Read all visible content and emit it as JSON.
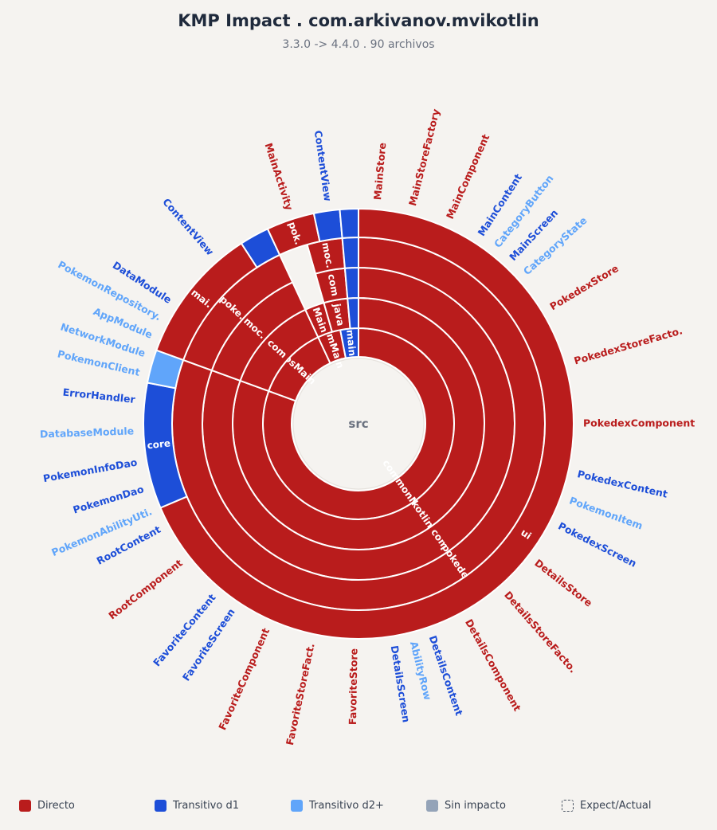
{
  "header": {
    "title": "KMP Impact . com.arkivanov.mvikotlin",
    "subtitle": "3.3.0 -> 4.4.0 . 90 archivos"
  },
  "colors": {
    "direct": "#b91c1c",
    "d1": "#1d4ed8",
    "d2": "#60a5fa",
    "none": "#94a3b8"
  },
  "legend": [
    {
      "label": "Directo",
      "color": "#b91c1c",
      "dashed": false
    },
    {
      "label": "Transitivo d1",
      "color": "#1d4ed8",
      "dashed": false
    },
    {
      "label": "Transitivo d2+",
      "color": "#60a5fa",
      "dashed": false
    },
    {
      "label": "Sin impacto",
      "color": "#94a3b8",
      "dashed": false
    },
    {
      "label": "Expect/Actual",
      "color": "none",
      "dashed": true
    }
  ],
  "chart_data": {
    "type": "sunburst",
    "root_label": "src",
    "rings": [
      [
        {
          "label": "commonMain",
          "start": 0,
          "end": 290,
          "impact": "direct"
        },
        {
          "label": "iosMain",
          "start": 290,
          "end": 335,
          "impact": "direct"
        },
        {
          "label": "jvmMain",
          "start": 335,
          "end": 349,
          "impact": "direct"
        },
        {
          "label": "main",
          "start": 349,
          "end": 360,
          "impact": "d1"
        }
      ],
      [
        {
          "label": "kotlin",
          "start": 0,
          "end": 290,
          "impact": "direct"
        },
        {
          "label": "com",
          "start": 290,
          "end": 335,
          "impact": "direct"
        },
        {
          "label": "Main",
          "start": 335,
          "end": 344,
          "impact": "direct"
        },
        {
          "label": "java",
          "start": 344,
          "end": 355,
          "impact": "direct"
        },
        {
          "label": "",
          "start": 355,
          "end": 360,
          "impact": "d1"
        }
      ],
      [
        {
          "label": "com",
          "start": 0,
          "end": 290,
          "impact": "direct"
        },
        {
          "label": "moc.",
          "start": 290,
          "end": 335,
          "impact": "direct"
        },
        {
          "label": "com",
          "start": 344,
          "end": 355,
          "impact": "direct"
        },
        {
          "label": "",
          "start": 355,
          "end": 360,
          "impact": "d1"
        }
      ],
      [
        {
          "label": "pokedex",
          "start": 0,
          "end": 290,
          "impact": "direct"
        },
        {
          "label": "poke.",
          "start": 290,
          "end": 335,
          "impact": "direct"
        },
        {
          "label": "moc.",
          "start": 344,
          "end": 355,
          "impact": "direct"
        },
        {
          "label": "",
          "start": 355,
          "end": 360,
          "impact": "d1"
        }
      ],
      [
        {
          "label": "ui",
          "start": 0,
          "end": 247,
          "impact": "direct"
        },
        {
          "label": "core",
          "start": 247,
          "end": 281,
          "impact": "d1"
        },
        {
          "label": "",
          "start": 281,
          "end": 290,
          "impact": "d2"
        },
        {
          "label": "mai.",
          "start": 290,
          "end": 327,
          "impact": "direct"
        },
        {
          "label": "",
          "start": 327,
          "end": 335,
          "impact": "d1"
        },
        {
          "label": "pok.",
          "start": 335,
          "end": 348,
          "impact": "direct"
        },
        {
          "label": "",
          "start": 348,
          "end": 355,
          "impact": "d1"
        },
        {
          "label": "",
          "start": 355,
          "end": 360,
          "impact": "d1"
        }
      ]
    ],
    "outer_labels": [
      {
        "label": "MainStore",
        "angle": 5,
        "impact": "direct"
      },
      {
        "label": "MainStoreFactory",
        "angle": 14,
        "impact": "direct"
      },
      {
        "label": "MainComponent",
        "angle": 24,
        "impact": "direct"
      },
      {
        "label": "MainContent",
        "angle": 33,
        "impact": "d1"
      },
      {
        "label": "CategoryButton",
        "angle": 38,
        "impact": "d2"
      },
      {
        "label": "MainScreen",
        "angle": 43,
        "impact": "d1"
      },
      {
        "label": "CategoryState",
        "angle": 48,
        "impact": "d2"
      },
      {
        "label": "PokedexStore",
        "angle": 59,
        "impact": "direct"
      },
      {
        "label": "PokedexStoreFacto.",
        "angle": 74,
        "impact": "direct"
      },
      {
        "label": "PokedexComponent",
        "angle": 90,
        "impact": "direct"
      },
      {
        "label": "PokedexContent",
        "angle": 103,
        "impact": "d1"
      },
      {
        "label": "PokemonItem",
        "angle": 110,
        "impact": "d2"
      },
      {
        "label": "PokedexScreen",
        "angle": 117,
        "impact": "d1"
      },
      {
        "label": "DetailsStore",
        "angle": 128,
        "impact": "direct"
      },
      {
        "label": "DetailsStoreFacto.",
        "angle": 139,
        "impact": "direct"
      },
      {
        "label": "DetailsComponent",
        "angle": 151,
        "impact": "direct"
      },
      {
        "label": "DetailsContent",
        "angle": 161,
        "impact": "d1"
      },
      {
        "label": "AbilityRow",
        "angle": 166,
        "impact": "d2"
      },
      {
        "label": "DetailsScreen",
        "angle": 171,
        "impact": "d1"
      },
      {
        "label": "FavoriteStore",
        "angle": 181,
        "impact": "direct"
      },
      {
        "label": "FavoriteStoreFact.",
        "angle": 192,
        "impact": "direct"
      },
      {
        "label": "FavoriteComponent",
        "angle": 204,
        "impact": "direct"
      },
      {
        "label": "FavoriteScreen",
        "angle": 214,
        "impact": "d1"
      },
      {
        "label": "FavoriteContent",
        "angle": 220,
        "impact": "d1"
      },
      {
        "label": "RootComponent",
        "angle": 232,
        "impact": "direct"
      },
      {
        "label": "RootContent",
        "angle": 242,
        "impact": "d1"
      },
      {
        "label": "PokemonAbilityUti.",
        "angle": 247,
        "impact": "d2"
      },
      {
        "label": "PokemonDao",
        "angle": 253,
        "impact": "d1"
      },
      {
        "label": "PokemonInfoDao",
        "angle": 260,
        "impact": "d1"
      },
      {
        "label": "DatabaseModule",
        "angle": 268,
        "impact": "d2"
      },
      {
        "label": "ErrorHandler",
        "angle": 276,
        "impact": "d1"
      },
      {
        "label": "PokemonClient",
        "angle": 283,
        "impact": "d2"
      },
      {
        "label": "NetworkModule",
        "angle": 288,
        "impact": "d2"
      },
      {
        "label": "AppModule",
        "angle": 293,
        "impact": "d2"
      },
      {
        "label": "PokemonRepository.",
        "angle": 298,
        "impact": "d2"
      },
      {
        "label": "DataModule",
        "angle": 303,
        "impact": "d1"
      },
      {
        "label": "ContentView",
        "angle": 319,
        "impact": "d1"
      },
      {
        "label": "MainActivity",
        "angle": 342,
        "impact": "direct"
      },
      {
        "label": "ContentView",
        "angle": 352,
        "impact": "d1"
      }
    ]
  }
}
